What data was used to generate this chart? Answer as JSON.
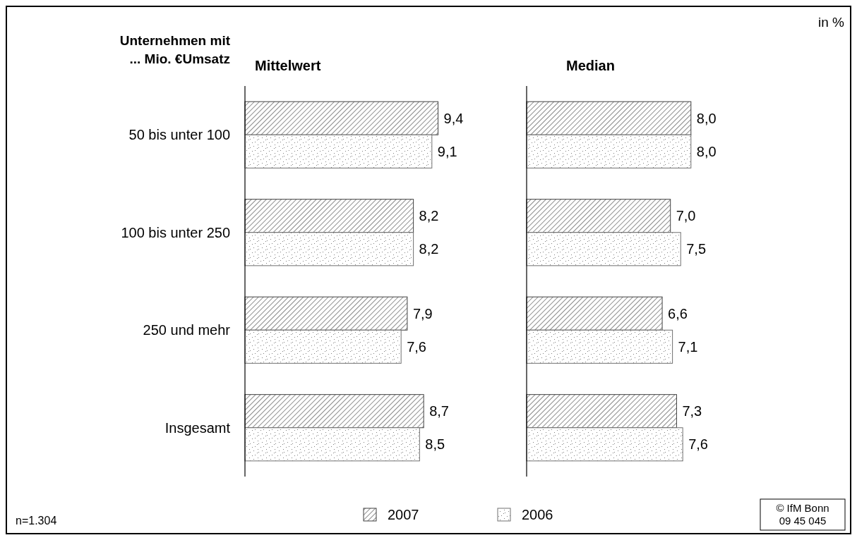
{
  "chart_data": [
    {
      "type": "bar",
      "orientation": "horizontal",
      "title": "Mittelwert",
      "ylabel": "Unternehmen mit\n... Mio. €Umsatz",
      "categories": [
        "50 bis unter 100",
        "100 bis unter 250",
        "250 und mehr",
        "Insgesamt"
      ],
      "legend": "bottom",
      "annotations": [
        "n=1.304"
      ],
      "series": [
        {
          "name": "2007",
          "color": "#404040",
          "values": [
            9.4,
            8.2,
            7.9,
            8.7
          ],
          "value_labels": [
            "9,4",
            "8,2",
            "7,9",
            "8,7"
          ]
        },
        {
          "name": "2006",
          "color": "#707070",
          "values": [
            9.1,
            8.2,
            7.6,
            8.5
          ],
          "value_labels": [
            "9,1",
            "8,2",
            "7,6",
            "8,5"
          ]
        }
      ]
    },
    {
      "type": "bar",
      "orientation": "horizontal",
      "title": "Median",
      "categories": [
        null,
        null,
        null,
        null
      ],
      "annotations": [
        "in %",
        "© IfM Bonn\n09 45 045"
      ],
      "series": [
        {
          "color": "#404040",
          "values": [
            8.0,
            7.0,
            6.6,
            7.3
          ],
          "value_labels": [
            "8,0",
            "7,0",
            "6,6",
            "7,3"
          ]
        },
        {
          "color": "#707070",
          "values": [
            8.0,
            7.5,
            7.1,
            7.6
          ],
          "value_labels": [
            "8,0",
            "7,5",
            "7,1",
            "7,6"
          ]
        }
      ]
    }
  ]
}
